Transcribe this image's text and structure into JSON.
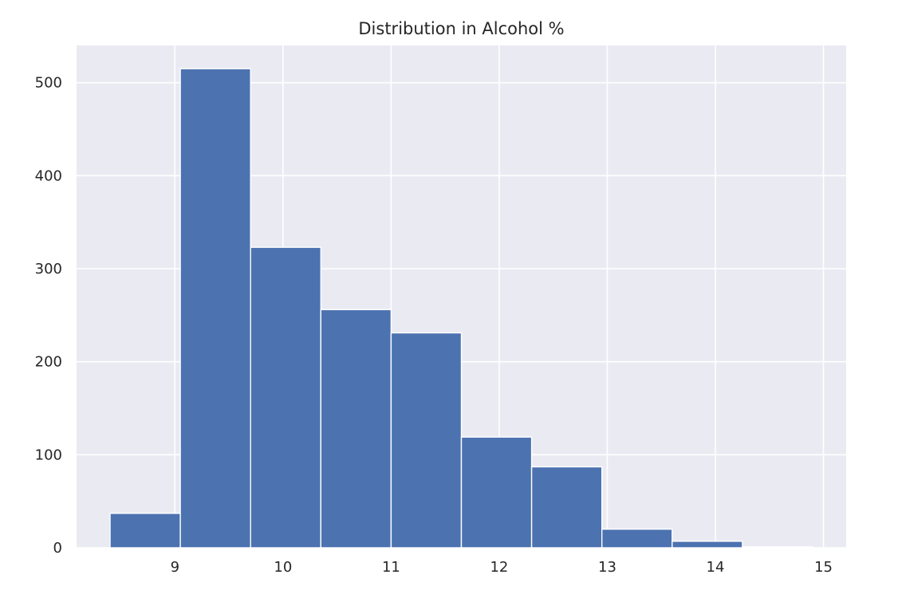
{
  "chart_data": {
    "type": "bar",
    "title": "Distribution in Alcohol %",
    "xlabel": "",
    "ylabel": "",
    "bin_edges": [
      8.4,
      9.05,
      9.7,
      10.35,
      11.0,
      11.65,
      12.3,
      12.95,
      13.6,
      14.25,
      14.9
    ],
    "values": [
      37,
      515,
      323,
      256,
      231,
      119,
      87,
      20,
      7,
      1
    ],
    "xlim": [
      8.09,
      15.21
    ],
    "ylim": [
      0,
      540
    ],
    "x_ticks": [
      9,
      10,
      11,
      12,
      13,
      14,
      15
    ],
    "x_tick_labels": [
      "9",
      "10",
      "11",
      "12",
      "13",
      "14",
      "15"
    ],
    "y_ticks": [
      0,
      100,
      200,
      300,
      400,
      500
    ],
    "y_tick_labels": [
      "0",
      "100",
      "200",
      "300",
      "400",
      "500"
    ],
    "grid": true,
    "legend": "none",
    "colors": {
      "bar": "#4c72b0",
      "bar_edge": "#ffffff",
      "axes_background": "#eaeaf2",
      "grid": "#ffffff",
      "text": "#262626"
    }
  }
}
